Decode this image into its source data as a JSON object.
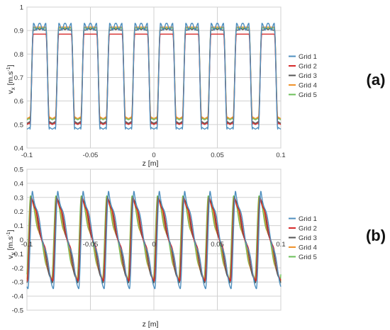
{
  "panel_labels": [
    "(a)",
    "(b)"
  ],
  "colors": {
    "Grid 1": "#4e8fbf",
    "Grid 2": "#d62a2a",
    "Grid 3": "#555555",
    "Grid 4": "#f0922b",
    "Grid 5": "#6bbf59"
  },
  "chart_data": [
    {
      "type": "line",
      "panel": "(a)",
      "xlabel": "z [m]",
      "ylabel": "v_x [m.s^-1]",
      "ylabel_base": "v",
      "ylabel_sub": "x",
      "ylabel_unit_pre": " [m.s",
      "ylabel_unit_sup": "-1",
      "ylabel_unit_post": "]",
      "xlim": [
        -0.1,
        0.1
      ],
      "ylim": [
        0.4,
        1.0
      ],
      "xticks": [
        -0.1,
        -0.05,
        0,
        0.05,
        0.1
      ],
      "xtick_labels": [
        "-0.1",
        "-0.05",
        "0",
        "0.05",
        "0.1"
      ],
      "yticks": [
        0.4,
        0.5,
        0.6,
        0.7,
        0.8,
        0.9,
        1.0
      ],
      "ytick_labels": [
        "0.4",
        "0.5",
        "0.6",
        "0.7",
        "0.8",
        "0.9",
        "1"
      ],
      "grid": true,
      "legend": "right",
      "period": 0.02,
      "phase": -0.1,
      "series": [
        {
          "name": "Grid 1",
          "plateau": 0.91,
          "trough": 0.48,
          "ripple": 0.02
        },
        {
          "name": "Grid 2",
          "plateau": 0.885,
          "trough": 0.5,
          "ripple": 0.0
        },
        {
          "name": "Grid 3",
          "plateau": 0.905,
          "trough": 0.505,
          "ripple": 0.003
        },
        {
          "name": "Grid 4",
          "plateau": 0.915,
          "trough": 0.525,
          "ripple": 0.0
        },
        {
          "name": "Grid 5",
          "plateau": 0.91,
          "trough": 0.52,
          "ripple": 0.0
        }
      ]
    },
    {
      "type": "line",
      "panel": "(b)",
      "xlabel": "z [m]",
      "ylabel": "v_y [m.s^-1]",
      "ylabel_base": "v",
      "ylabel_sub": "y",
      "ylabel_unit_pre": " [m.s",
      "ylabel_unit_sup": "-1",
      "ylabel_unit_post": "]",
      "xlim": [
        -0.1,
        0.1
      ],
      "ylim": [
        -0.5,
        0.5
      ],
      "xticks": [
        -0.1,
        -0.05,
        0,
        0.05,
        0.1
      ],
      "xtick_labels": [
        "-0.1",
        "-0.05",
        "0",
        "0.05",
        "0.1"
      ],
      "yticks": [
        -0.5,
        -0.4,
        -0.3,
        -0.2,
        -0.1,
        0,
        0.1,
        0.2,
        0.3,
        0.4,
        0.5
      ],
      "ytick_labels": [
        "-0.5",
        "-0.4",
        "-0.3",
        "-0.2",
        "-0.1",
        "0",
        "0.1",
        "0.2",
        "0.3",
        "0.4",
        "0.5"
      ],
      "grid": true,
      "legend": "right",
      "period": 0.02,
      "phase": -0.1,
      "series": [
        {
          "name": "Grid 1",
          "amplitude": 0.35
        },
        {
          "name": "Grid 2",
          "amplitude": 0.31
        },
        {
          "name": "Grid 3",
          "amplitude": 0.33
        },
        {
          "name": "Grid 4",
          "amplitude": 0.32
        },
        {
          "name": "Grid 5",
          "amplitude": 0.315
        }
      ]
    }
  ]
}
